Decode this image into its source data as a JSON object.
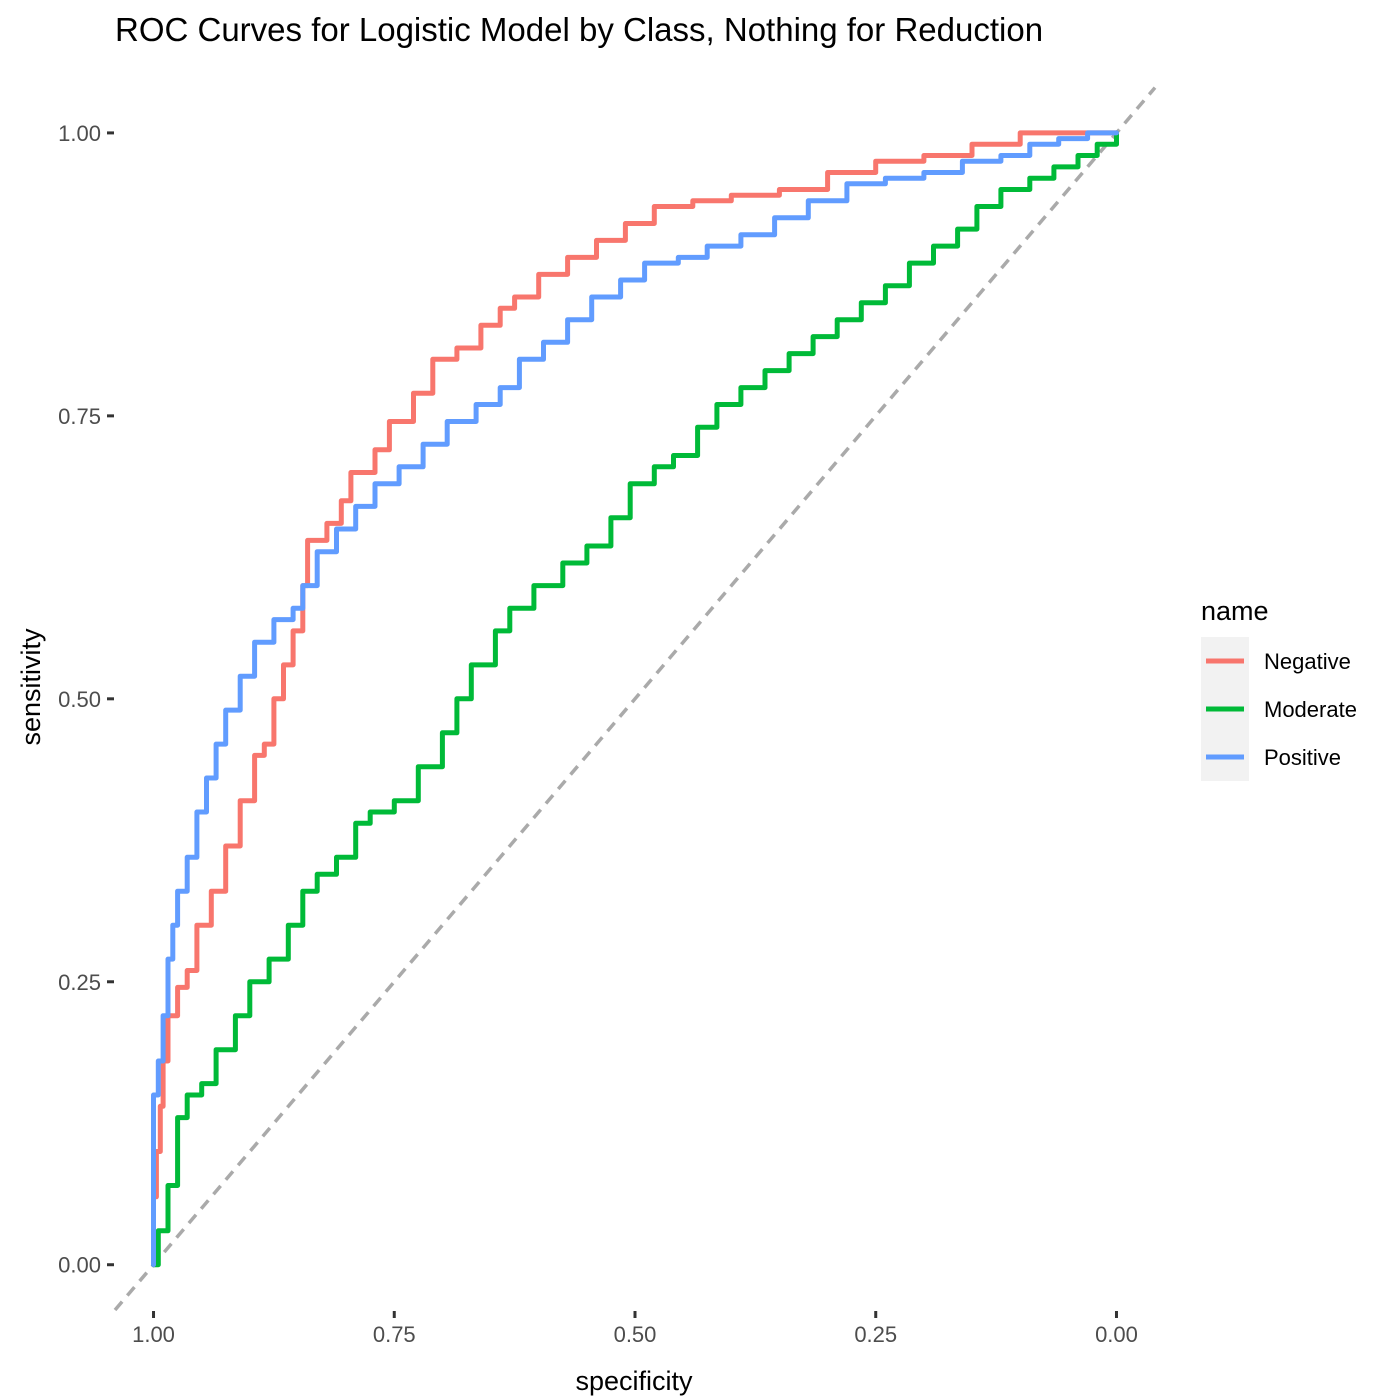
{
  "chart_data": {
    "type": "line",
    "title": "ROC Curves for Logistic Model by Class, Nothing for Reduction",
    "xlabel": "specificity",
    "ylabel": "sensitivity",
    "x_reversed": true,
    "xlim": [
      1.04,
      -0.04
    ],
    "ylim": [
      -0.04,
      1.06
    ],
    "x_ticks": [
      1.0,
      0.75,
      0.5,
      0.25,
      0.0
    ],
    "x_tick_labels": [
      "1.00",
      "0.75",
      "0.50",
      "0.25",
      "0.00"
    ],
    "y_ticks": [
      0.0,
      0.25,
      0.5,
      0.75,
      1.0
    ],
    "y_tick_labels": [
      "0.00",
      "0.25",
      "0.50",
      "0.75",
      "1.00"
    ],
    "grid": false,
    "legend": {
      "title": "name",
      "position": "right"
    },
    "reference_line": {
      "style": "dashed",
      "color": "#AAAAAA",
      "from": [
        1,
        0
      ],
      "to": [
        0,
        1
      ]
    },
    "series": [
      {
        "name": "Negative",
        "color": "#F8766D",
        "points": [
          [
            1.0,
            0.0
          ],
          [
            1.0,
            0.06
          ],
          [
            0.997,
            0.1
          ],
          [
            0.993,
            0.14
          ],
          [
            0.99,
            0.18
          ],
          [
            0.985,
            0.22
          ],
          [
            0.975,
            0.245
          ],
          [
            0.965,
            0.26
          ],
          [
            0.955,
            0.3
          ],
          [
            0.94,
            0.33
          ],
          [
            0.925,
            0.37
          ],
          [
            0.91,
            0.41
          ],
          [
            0.895,
            0.45
          ],
          [
            0.885,
            0.46
          ],
          [
            0.875,
            0.5
          ],
          [
            0.865,
            0.53
          ],
          [
            0.855,
            0.56
          ],
          [
            0.845,
            0.6
          ],
          [
            0.84,
            0.64
          ],
          [
            0.82,
            0.655
          ],
          [
            0.805,
            0.675
          ],
          [
            0.795,
            0.7
          ],
          [
            0.77,
            0.72
          ],
          [
            0.755,
            0.745
          ],
          [
            0.73,
            0.77
          ],
          [
            0.71,
            0.8
          ],
          [
            0.685,
            0.81
          ],
          [
            0.66,
            0.83
          ],
          [
            0.64,
            0.845
          ],
          [
            0.625,
            0.855
          ],
          [
            0.6,
            0.875
          ],
          [
            0.57,
            0.89
          ],
          [
            0.54,
            0.905
          ],
          [
            0.51,
            0.92
          ],
          [
            0.48,
            0.935
          ],
          [
            0.44,
            0.94
          ],
          [
            0.4,
            0.945
          ],
          [
            0.35,
            0.95
          ],
          [
            0.3,
            0.965
          ],
          [
            0.25,
            0.975
          ],
          [
            0.2,
            0.98
          ],
          [
            0.15,
            0.99
          ],
          [
            0.1,
            1.0
          ],
          [
            0.05,
            1.0
          ],
          [
            0.0,
            1.0
          ]
        ]
      },
      {
        "name": "Moderate",
        "color": "#00BA38",
        "points": [
          [
            1.0,
            0.0
          ],
          [
            0.995,
            0.03
          ],
          [
            0.985,
            0.07
          ],
          [
            0.975,
            0.13
          ],
          [
            0.965,
            0.15
          ],
          [
            0.95,
            0.16
          ],
          [
            0.935,
            0.19
          ],
          [
            0.915,
            0.22
          ],
          [
            0.9,
            0.25
          ],
          [
            0.88,
            0.27
          ],
          [
            0.86,
            0.3
          ],
          [
            0.845,
            0.33
          ],
          [
            0.83,
            0.345
          ],
          [
            0.81,
            0.36
          ],
          [
            0.79,
            0.39
          ],
          [
            0.775,
            0.4
          ],
          [
            0.75,
            0.41
          ],
          [
            0.725,
            0.44
          ],
          [
            0.7,
            0.47
          ],
          [
            0.685,
            0.5
          ],
          [
            0.67,
            0.53
          ],
          [
            0.645,
            0.56
          ],
          [
            0.63,
            0.58
          ],
          [
            0.605,
            0.6
          ],
          [
            0.575,
            0.62
          ],
          [
            0.55,
            0.635
          ],
          [
            0.525,
            0.66
          ],
          [
            0.505,
            0.69
          ],
          [
            0.48,
            0.705
          ],
          [
            0.46,
            0.715
          ],
          [
            0.435,
            0.74
          ],
          [
            0.415,
            0.76
          ],
          [
            0.39,
            0.775
          ],
          [
            0.365,
            0.79
          ],
          [
            0.34,
            0.805
          ],
          [
            0.315,
            0.82
          ],
          [
            0.29,
            0.835
          ],
          [
            0.265,
            0.85
          ],
          [
            0.24,
            0.865
          ],
          [
            0.215,
            0.885
          ],
          [
            0.19,
            0.9
          ],
          [
            0.165,
            0.915
          ],
          [
            0.145,
            0.935
          ],
          [
            0.12,
            0.95
          ],
          [
            0.09,
            0.96
          ],
          [
            0.065,
            0.97
          ],
          [
            0.04,
            0.98
          ],
          [
            0.02,
            0.99
          ],
          [
            0.0,
            1.0
          ]
        ]
      },
      {
        "name": "Positive",
        "color": "#619CFF",
        "points": [
          [
            1.0,
            0.0
          ],
          [
            1.0,
            0.15
          ],
          [
            0.995,
            0.18
          ],
          [
            0.99,
            0.22
          ],
          [
            0.985,
            0.27
          ],
          [
            0.98,
            0.3
          ],
          [
            0.975,
            0.33
          ],
          [
            0.965,
            0.36
          ],
          [
            0.955,
            0.4
          ],
          [
            0.945,
            0.43
          ],
          [
            0.935,
            0.46
          ],
          [
            0.925,
            0.49
          ],
          [
            0.91,
            0.52
          ],
          [
            0.895,
            0.55
          ],
          [
            0.875,
            0.57
          ],
          [
            0.855,
            0.58
          ],
          [
            0.845,
            0.6
          ],
          [
            0.83,
            0.63
          ],
          [
            0.81,
            0.65
          ],
          [
            0.79,
            0.67
          ],
          [
            0.77,
            0.69
          ],
          [
            0.745,
            0.705
          ],
          [
            0.72,
            0.725
          ],
          [
            0.695,
            0.745
          ],
          [
            0.665,
            0.76
          ],
          [
            0.64,
            0.775
          ],
          [
            0.62,
            0.8
          ],
          [
            0.595,
            0.815
          ],
          [
            0.57,
            0.835
          ],
          [
            0.545,
            0.855
          ],
          [
            0.515,
            0.87
          ],
          [
            0.49,
            0.885
          ],
          [
            0.455,
            0.89
          ],
          [
            0.425,
            0.9
          ],
          [
            0.39,
            0.91
          ],
          [
            0.355,
            0.925
          ],
          [
            0.32,
            0.94
          ],
          [
            0.28,
            0.955
          ],
          [
            0.24,
            0.96
          ],
          [
            0.2,
            0.965
          ],
          [
            0.16,
            0.975
          ],
          [
            0.12,
            0.98
          ],
          [
            0.09,
            0.99
          ],
          [
            0.06,
            0.995
          ],
          [
            0.03,
            1.0
          ],
          [
            0.0,
            1.0
          ]
        ]
      }
    ]
  }
}
